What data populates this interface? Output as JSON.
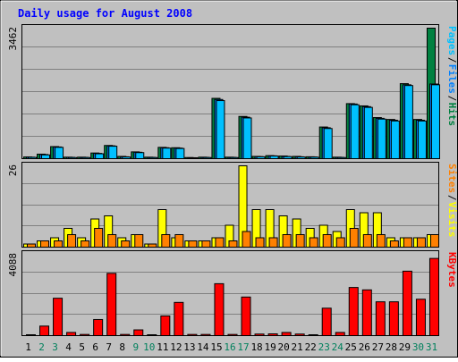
{
  "chart_data": {
    "type": "bar",
    "title": "Daily usage for August 2008",
    "categories": [
      "1",
      "2",
      "3",
      "4",
      "5",
      "6",
      "7",
      "8",
      "9",
      "10",
      "11",
      "12",
      "13",
      "14",
      "15",
      "16",
      "17",
      "18",
      "19",
      "20",
      "21",
      "22",
      "23",
      "24",
      "25",
      "26",
      "27",
      "28",
      "29",
      "30",
      "31"
    ],
    "weekend_days": [
      "2",
      "3",
      "9",
      "10",
      "16",
      "17",
      "23",
      "24",
      "30",
      "31"
    ],
    "panels": [
      {
        "ymax_label": "3462",
        "ylim": [
          0,
          3462
        ],
        "series": [
          {
            "name": "Hits",
            "color": "#008040",
            "values": [
              45,
              120,
              320,
              40,
              40,
              150,
              350,
              60,
              180,
              40,
              300,
              290,
              30,
              40,
              1600,
              40,
              1120,
              60,
              80,
              70,
              60,
              50,
              840,
              40,
              1460,
              1400,
              1090,
              1040,
              1990,
              1040,
              3462
            ]
          },
          {
            "name": "Files",
            "color": "#0080ff",
            "values": [
              40,
              110,
              310,
              35,
              35,
              140,
              340,
              50,
              170,
              35,
              290,
              280,
              25,
              35,
              1570,
              35,
              1100,
              55,
              75,
              60,
              50,
              45,
              820,
              35,
              1450,
              1380,
              1070,
              1020,
              1960,
              1020,
              1980
            ]
          },
          {
            "name": "Pages",
            "color": "#00c0ff",
            "values": [
              35,
              100,
              300,
              30,
              30,
              130,
              330,
              45,
              160,
              30,
              280,
              270,
              20,
              30,
              1540,
              30,
              1080,
              50,
              70,
              55,
              45,
              40,
              800,
              30,
              1430,
              1360,
              1050,
              1000,
              1940,
              1000,
              1960
            ]
          }
        ],
        "legend": [
          "Pages",
          "/",
          "Files",
          "/",
          "Hits"
        ],
        "legend_colors": [
          "#00c0ff",
          "#000000",
          "#0080ff",
          "#000000",
          "#008040"
        ]
      },
      {
        "ymax_label": "26",
        "ylim": [
          0,
          26
        ],
        "series": [
          {
            "name": "Visits",
            "color": "#ffff00",
            "values": [
              1,
              2,
              3,
              6,
              3,
              9,
              10,
              3,
              4,
              1,
              12,
              3,
              2,
              2,
              3,
              7,
              26,
              12,
              12,
              10,
              9,
              6,
              7,
              5,
              12,
              11,
              11,
              3,
              3,
              3,
              4
            ]
          },
          {
            "name": "Sites",
            "color": "#ff8000",
            "values": [
              1,
              2,
              2,
              4,
              2,
              6,
              4,
              2,
              4,
              1,
              4,
              4,
              2,
              2,
              3,
              2,
              5,
              3,
              3,
              4,
              4,
              3,
              4,
              3,
              6,
              4,
              4,
              2,
              3,
              3,
              4
            ]
          }
        ],
        "legend": [
          "Sites",
          "/",
          "Visits"
        ],
        "legend_colors": [
          "#ff8000",
          "#000000",
          "#ffff00"
        ]
      },
      {
        "ymax_label": "4088",
        "ylim": [
          0,
          4088
        ],
        "series": [
          {
            "name": "KBytes",
            "color": "#ff0000",
            "values": [
              30,
              480,
              1880,
              160,
              60,
              810,
              3130,
              60,
              290,
              40,
              990,
              1670,
              60,
              60,
              2610,
              60,
              1940,
              80,
              90,
              160,
              80,
              40,
              1380,
              160,
              2420,
              2300,
              1700,
              1700,
              3240,
              1830,
              3880
            ]
          }
        ],
        "legend": [
          "KBytes"
        ],
        "legend_colors": [
          "#ff0000"
        ]
      }
    ]
  },
  "colors": {
    "background": "#c0c0c0",
    "frame": "#ffffff",
    "title": "#0000ff",
    "weekday_label": "#000000",
    "weekend_label": "#00805c"
  }
}
